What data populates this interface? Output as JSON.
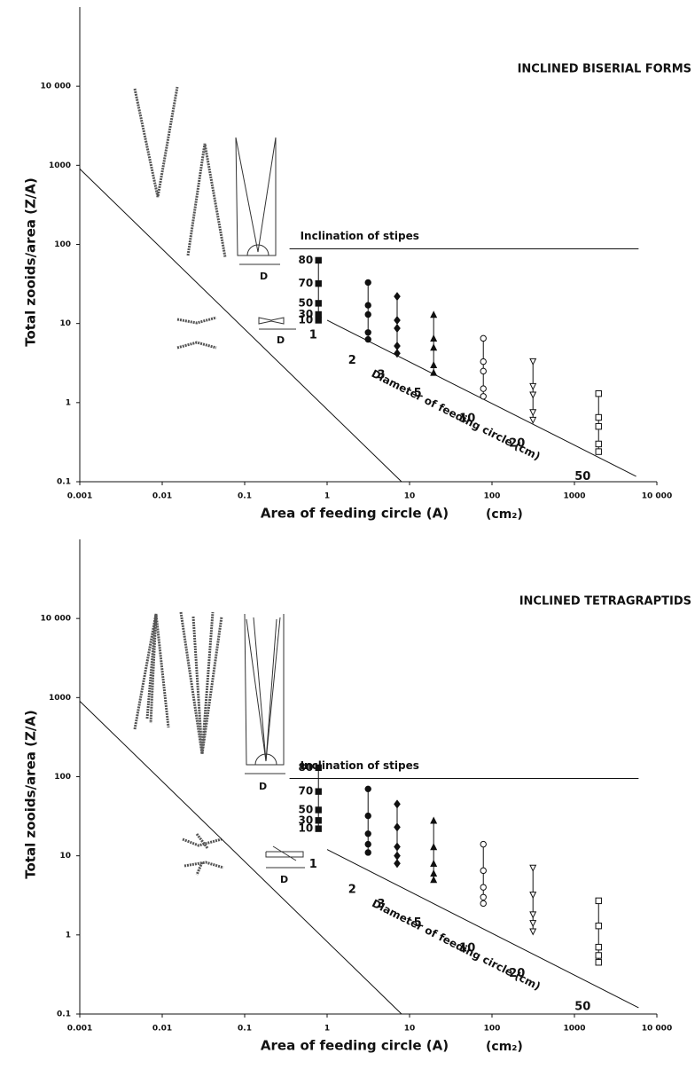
{
  "chart_data": [
    {
      "type": "scatter",
      "title": "INCLINED BISERIAL FORMS",
      "xlabel": "Area of feeding circle (A)",
      "xunit": "(cm₂)",
      "ylabel": "Total zooids/area (Z/A)",
      "log_x": true,
      "log_y": true,
      "color": "#111111",
      "xlim": [
        0.001,
        10000
      ],
      "ylim": [
        0.1,
        100000
      ],
      "xticks": [
        0.001,
        0.01,
        0.1,
        1,
        10,
        100,
        1000,
        {
          "value": 10000,
          "label": "10 000"
        }
      ],
      "yticks": [
        0.1,
        1,
        10,
        100,
        1000,
        {
          "value": 10000,
          "label": "10 000"
        }
      ],
      "inclination_label": "Inclination of stipes",
      "inclinations": [
        10,
        30,
        50,
        70,
        80
      ],
      "inclination_line": {
        "x": [
          0.35,
          6000
        ],
        "y": [
          88,
          88
        ]
      },
      "diameter_label": "Diameter of feeding circle (cm)",
      "lines": [
        {
          "x": [
            0.001,
            8
          ],
          "y": [
            900,
            0.1
          ]
        },
        {
          "x": [
            1,
            5600
          ],
          "y": [
            11,
            0.117
          ]
        }
      ],
      "sketch_labels": [
        "D",
        "D"
      ],
      "series": [
        {
          "name": "1",
          "marker": "filled-square",
          "x": 0.785,
          "values": [
            11,
            13,
            18,
            32,
            63
          ]
        },
        {
          "name": "2",
          "marker": "filled-circle",
          "x": 3.14,
          "values": [
            6.3,
            7.7,
            13,
            17,
            33
          ]
        },
        {
          "name": "3",
          "marker": "filled-diamond",
          "x": 7.07,
          "values": [
            4.2,
            5.2,
            8.7,
            11,
            22
          ]
        },
        {
          "name": "5",
          "marker": "filled-triangle",
          "x": 19.6,
          "values": [
            2.4,
            3,
            5,
            6.5,
            13
          ]
        },
        {
          "name": "10",
          "marker": "open-circle",
          "x": 78.5,
          "values": [
            1.2,
            1.5,
            2.5,
            3.3,
            6.5
          ]
        },
        {
          "name": "20",
          "marker": "open-triangle-down",
          "x": 314,
          "values": [
            0.6,
            0.75,
            1.25,
            1.6,
            3.3
          ]
        },
        {
          "name": "50",
          "marker": "open-square",
          "x": 1963,
          "values": [
            0.24,
            0.3,
            0.5,
            0.65,
            1.3
          ]
        }
      ]
    },
    {
      "type": "scatter",
      "title": "INCLINED TETRAGRAPTIDS",
      "xlabel": "Area of feeding circle (A)",
      "xunit": "(cm₂)",
      "ylabel": "Total zooids/area (Z/A)",
      "log_x": true,
      "log_y": true,
      "color": "#111111",
      "xlim": [
        0.001,
        10000
      ],
      "ylim": [
        0.1,
        100000
      ],
      "xticks": [
        0.001,
        0.01,
        0.1,
        1,
        10,
        100,
        1000,
        {
          "value": 10000,
          "label": "10 000"
        }
      ],
      "yticks": [
        0.1,
        1,
        10,
        100,
        1000,
        {
          "value": 10000,
          "label": "10 000"
        }
      ],
      "inclination_label": "Inclination of stipes",
      "inclinations": [
        10,
        30,
        50,
        70,
        80
      ],
      "inclination_line": {
        "x": [
          0.35,
          6000
        ],
        "y": [
          95,
          95
        ]
      },
      "diameter_label": "Diameter of feeding circle (cm)",
      "lines": [
        {
          "x": [
            0.001,
            8
          ],
          "y": [
            900,
            0.1
          ]
        },
        {
          "x": [
            1,
            6000
          ],
          "y": [
            12,
            0.12
          ]
        }
      ],
      "sketch_labels": [
        "D",
        "D"
      ],
      "series": [
        {
          "name": "1",
          "marker": "filled-square",
          "x": 0.785,
          "values": [
            22,
            28,
            38,
            65,
            130
          ]
        },
        {
          "name": "2",
          "marker": "filled-circle",
          "x": 3.14,
          "values": [
            11,
            14,
            19,
            32,
            70
          ]
        },
        {
          "name": "3",
          "marker": "filled-diamond",
          "x": 7.07,
          "values": [
            8,
            10,
            13,
            23,
            45
          ]
        },
        {
          "name": "5",
          "marker": "filled-triangle",
          "x": 19.6,
          "values": [
            5,
            6,
            8,
            13,
            28
          ]
        },
        {
          "name": "10",
          "marker": "open-circle",
          "x": 78.5,
          "values": [
            2.5,
            3,
            4,
            6.5,
            14
          ]
        },
        {
          "name": "20",
          "marker": "open-triangle-down",
          "x": 314,
          "values": [
            1.1,
            1.4,
            1.8,
            3.2,
            7
          ]
        },
        {
          "name": "50",
          "marker": "open-square",
          "x": 1963,
          "values": [
            0.45,
            0.55,
            0.7,
            1.3,
            2.7
          ]
        }
      ]
    }
  ]
}
